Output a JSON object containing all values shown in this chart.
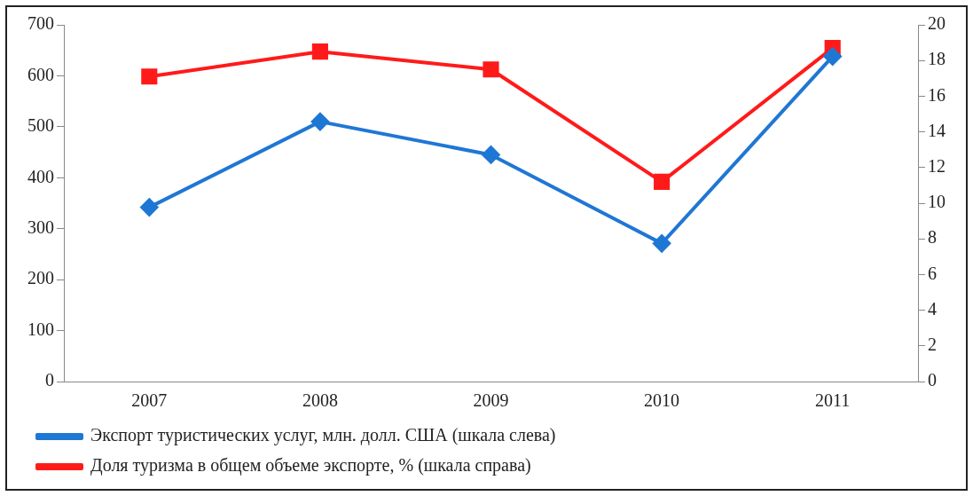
{
  "chart_data": {
    "type": "line",
    "categories": [
      "2007",
      "2008",
      "2009",
      "2010",
      "2011"
    ],
    "series": [
      {
        "name": "Экспорт туристических услуг, млн. долл. США (шкала слева)",
        "color": "#1f77d4",
        "values": [
          342,
          510,
          445,
          271,
          638
        ],
        "marker": "diamond"
      },
      {
        "name": "Доля туризма в общем объеме экспорте, % (шкала справа)",
        "color": "#ff1a1a",
        "values": [
          17.1,
          18.5,
          17.5,
          11.2,
          18.7
        ],
        "marker": "square",
        "axis": "y2"
      }
    ],
    "ylim": [
      0,
      700
    ],
    "yticks": [
      0,
      100,
      200,
      300,
      400,
      500,
      600,
      700
    ],
    "y2lim": [
      0,
      20
    ],
    "y2ticks": [
      0,
      2,
      4,
      6,
      8,
      10,
      12,
      14,
      16,
      18,
      20
    ],
    "grid": false,
    "legend": "bottom",
    "line_style": "solid"
  }
}
